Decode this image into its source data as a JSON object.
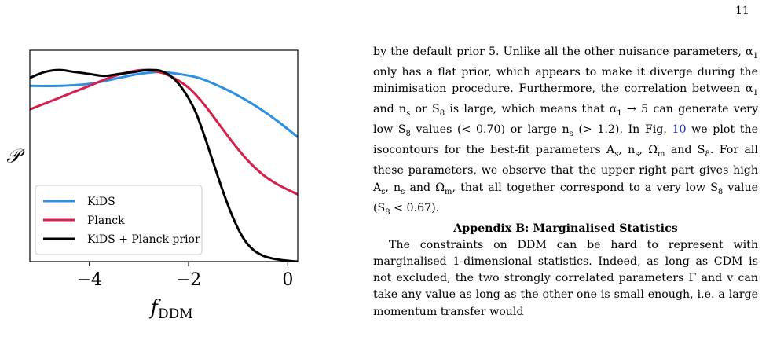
{
  "page_number": "11",
  "chart_data": {
    "type": "line",
    "xlabel": "f_DDM",
    "ylabel": "𝒫",
    "xlim": [
      -5.2,
      0.2
    ],
    "ylim": [
      0.0,
      1.07
    ],
    "xticks": [
      -4,
      -2,
      0
    ],
    "xtick_labels": [
      "−4",
      "−2",
      "0"
    ],
    "legend_position": "lower-left",
    "series": [
      {
        "name": "KiDS",
        "color": "#2b8fe6",
        "x": [
          -5.2,
          -4.6,
          -4.0,
          -3.4,
          -3.0,
          -2.6,
          -2.2,
          -1.8,
          -1.4,
          -1.0,
          -0.6,
          -0.2,
          0.2
        ],
        "y": [
          0.89,
          0.89,
          0.9,
          0.93,
          0.95,
          0.96,
          0.95,
          0.93,
          0.89,
          0.84,
          0.78,
          0.71,
          0.63
        ]
      },
      {
        "name": "Planck",
        "color": "#d81e4b",
        "x": [
          -5.2,
          -4.8,
          -4.4,
          -4.0,
          -3.6,
          -3.2,
          -2.9,
          -2.6,
          -2.3,
          -2.0,
          -1.7,
          -1.4,
          -1.1,
          -0.8,
          -0.5,
          -0.2,
          0.2
        ],
        "y": [
          0.77,
          0.81,
          0.85,
          0.89,
          0.93,
          0.96,
          0.97,
          0.96,
          0.93,
          0.88,
          0.8,
          0.7,
          0.6,
          0.51,
          0.44,
          0.39,
          0.34
        ]
      },
      {
        "name": "KiDS + Planck prior",
        "color": "#000000",
        "x": [
          -5.2,
          -4.9,
          -4.6,
          -4.3,
          -4.0,
          -3.7,
          -3.4,
          -3.1,
          -2.8,
          -2.5,
          -2.2,
          -1.9,
          -1.7,
          -1.5,
          -1.3,
          -1.1,
          -0.9,
          -0.7,
          -0.5,
          -0.3,
          -0.1,
          0.2
        ],
        "y": [
          0.93,
          0.96,
          0.97,
          0.96,
          0.95,
          0.94,
          0.95,
          0.96,
          0.97,
          0.96,
          0.9,
          0.78,
          0.65,
          0.5,
          0.35,
          0.22,
          0.12,
          0.06,
          0.03,
          0.015,
          0.007,
          0.0
        ]
      }
    ]
  },
  "text": {
    "body_paragraph_parts": [
      "by the default prior 5. Unlike all the other nuisance parameters, α",
      "1",
      " only has a flat prior, which appears to make it diverge during the minimisation procedure. Furthermore, the correlation between α",
      "1",
      " and n",
      "s",
      " or S",
      "8",
      " is large, which means that α",
      "1",
      " → 5 can generate very low S",
      "8",
      " values (< 0.70) or large n",
      "s",
      " (> 1.2). In Fig. ",
      "10",
      " we plot the isocontours for the best-fit parameters A",
      "s",
      ", n",
      "s",
      ", Ω",
      "m",
      " and S",
      "8",
      ". For all these parameters, we observe that the upper right part gives high A",
      "s",
      ", n",
      "s",
      " and Ω",
      "m",
      ", that all together correspond to a very low S",
      "8",
      " value (S",
      "8",
      " < 0.67)."
    ],
    "appendix_heading": "Appendix B: Marginalised Statistics",
    "constraints_paragraph": "The constraints on DDM can be hard to represent with marginalised 1-dimensional statistics. Indeed, as long as CDM is not excluded, the two strongly correlated parameters Γ and v can take any value as long as the other one is small enough, i.e. a large momentum transfer would"
  }
}
